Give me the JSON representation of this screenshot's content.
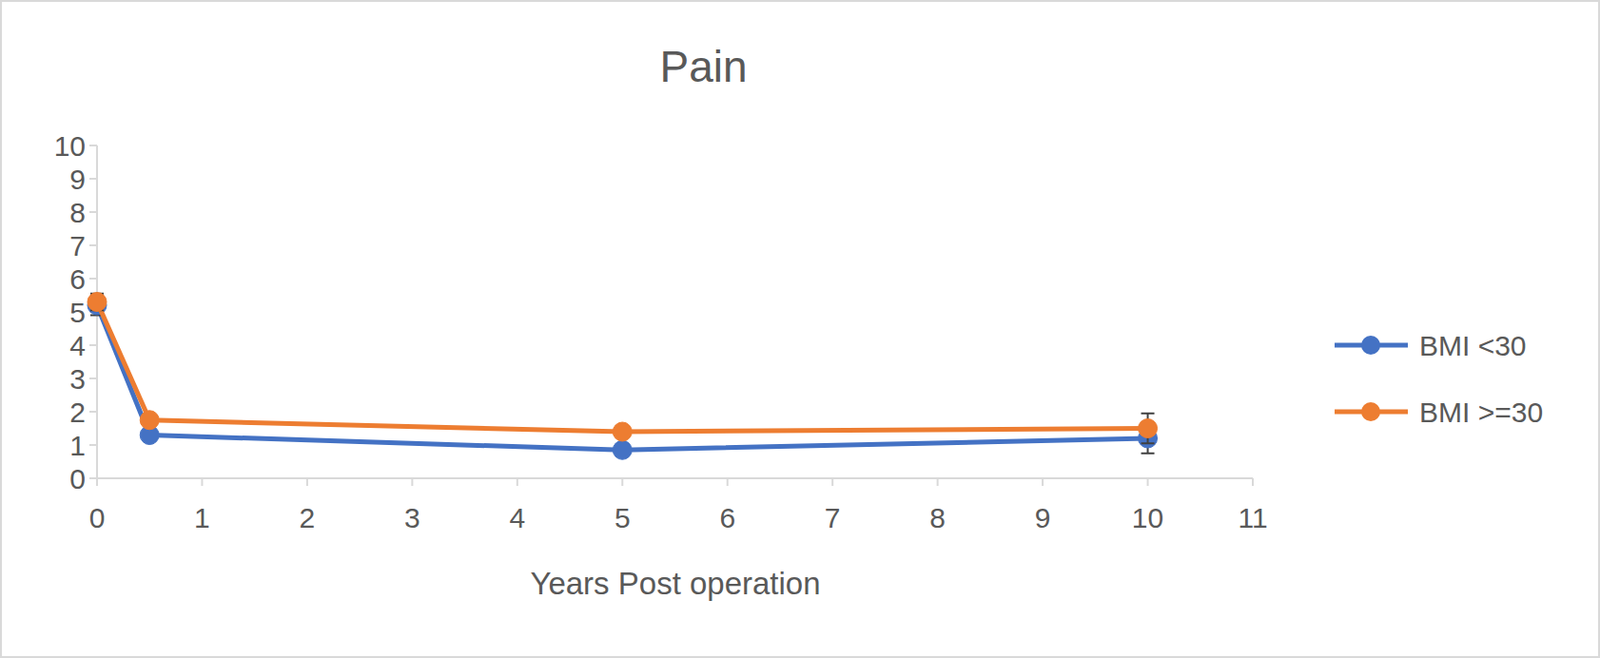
{
  "chart_data": {
    "type": "line",
    "title": "Pain",
    "x_label": "Years Post operation",
    "x": [
      0,
      0.5,
      5,
      10
    ],
    "series": [
      {
        "name": "BMI <30",
        "color": "#4472c4",
        "marker": "circle",
        "values": [
          5.2,
          1.3,
          0.85,
          1.2
        ],
        "errors": [
          0.3,
          0.15,
          0.15,
          0.45
        ]
      },
      {
        "name": "BMI >=30",
        "color": "#ed7d31",
        "marker": "circle",
        "values": [
          5.3,
          1.75,
          1.4,
          1.5
        ],
        "errors": [
          0.25,
          0.15,
          0.15,
          0.45
        ]
      }
    ],
    "xlim": [
      0,
      11
    ],
    "xticks": [
      0,
      1,
      2,
      3,
      4,
      5,
      6,
      7,
      8,
      9,
      10,
      11
    ],
    "ylim": [
      0,
      10
    ],
    "yticks": [
      0,
      1,
      2,
      3,
      4,
      5,
      6,
      7,
      8,
      9,
      10
    ],
    "grid": false,
    "legend": "right"
  }
}
